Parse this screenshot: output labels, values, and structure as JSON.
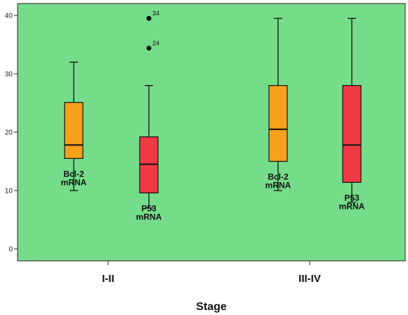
{
  "chart_data": {
    "type": "boxplot",
    "title": "",
    "xlabel": "Stage",
    "ylabel": "",
    "ylim": [
      -2,
      42
    ],
    "yticks": [
      0,
      10,
      20,
      30,
      40
    ],
    "grid": false,
    "colors": {
      "background": "#75dc8a",
      "Bcl-2 mRNA": "#f7a01c",
      "P53 mRNA": "#ee3a44"
    },
    "categories": [
      "I-II",
      "III-IV"
    ],
    "boxes": [
      {
        "category": "I-II",
        "label_line1": "Bcl-2",
        "label_line2": "mRNA",
        "whisker_low": 10,
        "q1": 15.5,
        "median": 17.8,
        "q3": 25.1,
        "whisker_high": 32,
        "outliers": []
      },
      {
        "category": "I-II",
        "label_line1": "P53",
        "label_line2": "mRNA",
        "whisker_low": 7,
        "q1": 9.6,
        "median": 14.5,
        "q3": 19.2,
        "whisker_high": 28,
        "outliers": [
          {
            "value": 39.5,
            "label": "34"
          },
          {
            "value": 34.4,
            "label": "24"
          }
        ]
      },
      {
        "category": "III-IV",
        "label_line1": "Bcl-2",
        "label_line2": "mRNA",
        "whisker_low": 10,
        "q1": 15,
        "median": 20.5,
        "q3": 28,
        "whisker_high": 39.5,
        "outliers": []
      },
      {
        "category": "III-IV",
        "label_line1": "P53",
        "label_line2": "mRNA",
        "whisker_low": 8,
        "q1": 11.4,
        "median": 17.8,
        "q3": 28,
        "whisker_high": 39.5,
        "outliers": []
      }
    ]
  }
}
